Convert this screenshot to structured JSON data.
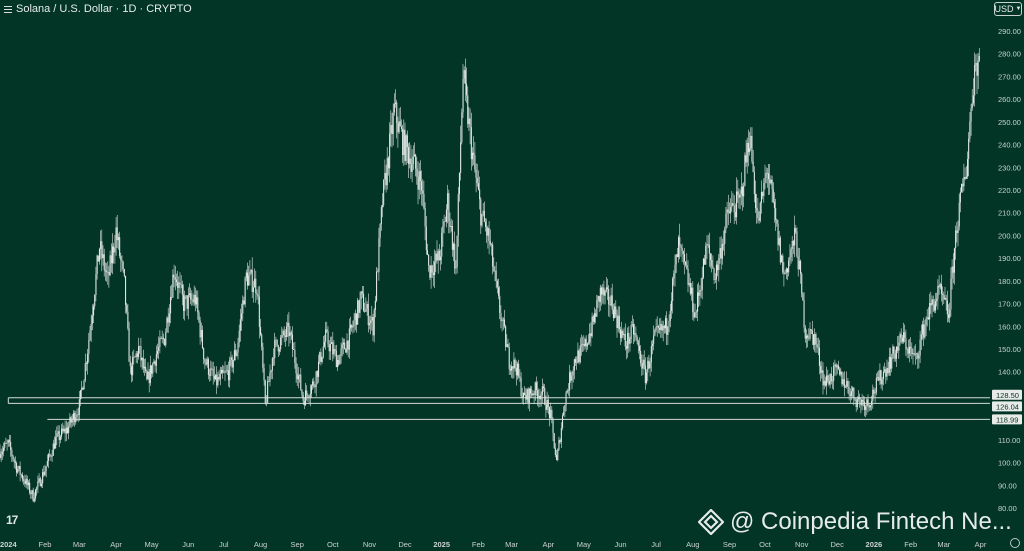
{
  "header": {
    "title": "Solana / U.S. Dollar · 1D · CRYPTO",
    "currency": "USD"
  },
  "logo_text": "17",
  "watermark": "@ Coinpedia Fintech Ne...",
  "colors": {
    "background": "#033527",
    "candle": "#dfe6e2",
    "level_line": "#d4dbd7",
    "axis_text": "#c9d2ce",
    "label_bg": "#e7ece9",
    "label_text": "#0b2d22"
  },
  "chart_data": {
    "type": "candlestick",
    "title": "Solana / U.S. Dollar · 1D · CRYPTO",
    "xlabel": "",
    "ylabel": "",
    "ylim": [
      70,
      300
    ],
    "y_ticks": [
      "80.00",
      "90.00",
      "100.00",
      "110.00",
      "120.00",
      "130.00",
      "140.00",
      "150.00",
      "160.00",
      "170.00",
      "180.00",
      "190.00",
      "200.00",
      "210.00",
      "220.00",
      "230.00",
      "240.00",
      "250.00",
      "260.00",
      "270.00",
      "280.00",
      "290.00"
    ],
    "x_ticks": [
      {
        "label": "2024",
        "date": "2024-01-01",
        "bold": true
      },
      {
        "label": "Feb",
        "date": "2024-02-01"
      },
      {
        "label": "Mar",
        "date": "2024-03-01"
      },
      {
        "label": "Apr",
        "date": "2024-04-01"
      },
      {
        "label": "May",
        "date": "2024-05-01"
      },
      {
        "label": "Jun",
        "date": "2024-06-01"
      },
      {
        "label": "Jul",
        "date": "2024-07-01"
      },
      {
        "label": "Aug",
        "date": "2024-08-01"
      },
      {
        "label": "Sep",
        "date": "2024-09-01"
      },
      {
        "label": "Oct",
        "date": "2024-10-01"
      },
      {
        "label": "Nov",
        "date": "2024-11-01"
      },
      {
        "label": "Dec",
        "date": "2024-12-01"
      },
      {
        "label": "2025",
        "date": "2025-01-01",
        "bold": true
      },
      {
        "label": "Feb",
        "date": "2025-02-01"
      },
      {
        "label": "Mar",
        "date": "2025-03-01"
      },
      {
        "label": "Apr",
        "date": "2025-04-01"
      },
      {
        "label": "May",
        "date": "2025-05-01"
      },
      {
        "label": "Jun",
        "date": "2025-06-01"
      },
      {
        "label": "Jul",
        "date": "2025-07-01"
      },
      {
        "label": "Aug",
        "date": "2025-08-01"
      },
      {
        "label": "Sep",
        "date": "2025-09-01"
      },
      {
        "label": "Oct",
        "date": "2025-10-01"
      },
      {
        "label": "Nov",
        "date": "2025-11-01"
      },
      {
        "label": "Dec",
        "date": "2025-12-01"
      },
      {
        "label": "2026",
        "date": "2026-01-01",
        "bold": true
      },
      {
        "label": "Feb",
        "date": "2026-02-01"
      },
      {
        "label": "Mar",
        "date": "2026-03-01"
      },
      {
        "label": "Apr",
        "date": "2026-04-01"
      }
    ],
    "price_path": [
      [
        "2023-12-25",
        105
      ],
      [
        "2024-01-01",
        108
      ],
      [
        "2024-01-08",
        98
      ],
      [
        "2024-01-15",
        92
      ],
      [
        "2024-01-22",
        85
      ],
      [
        "2024-02-01",
        97
      ],
      [
        "2024-02-10",
        110
      ],
      [
        "2024-02-20",
        115
      ],
      [
        "2024-03-01",
        125
      ],
      [
        "2024-03-08",
        150
      ],
      [
        "2024-03-18",
        195
      ],
      [
        "2024-03-25",
        180
      ],
      [
        "2024-04-01",
        202
      ],
      [
        "2024-04-08",
        178
      ],
      [
        "2024-04-13",
        140
      ],
      [
        "2024-04-20",
        150
      ],
      [
        "2024-04-27",
        135
      ],
      [
        "2024-05-05",
        148
      ],
      [
        "2024-05-12",
        155
      ],
      [
        "2024-05-20",
        185
      ],
      [
        "2024-05-28",
        170
      ],
      [
        "2024-06-07",
        172
      ],
      [
        "2024-06-15",
        145
      ],
      [
        "2024-06-24",
        135
      ],
      [
        "2024-07-05",
        140
      ],
      [
        "2024-07-12",
        150
      ],
      [
        "2024-07-20",
        182
      ],
      [
        "2024-07-29",
        178
      ],
      [
        "2024-08-05",
        125
      ],
      [
        "2024-08-12",
        150
      ],
      [
        "2024-08-25",
        158
      ],
      [
        "2024-09-06",
        128
      ],
      [
        "2024-09-15",
        135
      ],
      [
        "2024-09-25",
        155
      ],
      [
        "2024-10-05",
        145
      ],
      [
        "2024-10-15",
        155
      ],
      [
        "2024-10-25",
        172
      ],
      [
        "2024-11-04",
        160
      ],
      [
        "2024-11-12",
        215
      ],
      [
        "2024-11-22",
        255
      ],
      [
        "2024-11-30",
        240
      ],
      [
        "2024-12-08",
        232
      ],
      [
        "2024-12-15",
        222
      ],
      [
        "2024-12-21",
        185
      ],
      [
        "2024-12-30",
        190
      ],
      [
        "2025-01-06",
        215
      ],
      [
        "2025-01-13",
        185
      ],
      [
        "2025-01-19",
        270
      ],
      [
        "2025-01-27",
        235
      ],
      [
        "2025-02-03",
        210
      ],
      [
        "2025-02-10",
        198
      ],
      [
        "2025-02-18",
        170
      ],
      [
        "2025-02-27",
        145
      ],
      [
        "2025-03-05",
        142
      ],
      [
        "2025-03-11",
        128
      ],
      [
        "2025-03-20",
        132
      ],
      [
        "2025-03-28",
        130
      ],
      [
        "2025-04-03",
        120
      ],
      [
        "2025-04-08",
        100
      ],
      [
        "2025-04-15",
        128
      ],
      [
        "2025-04-23",
        145
      ],
      [
        "2025-05-01",
        150
      ],
      [
        "2025-05-08",
        160
      ],
      [
        "2025-05-15",
        175
      ],
      [
        "2025-05-25",
        170
      ],
      [
        "2025-06-05",
        152
      ],
      [
        "2025-06-12",
        158
      ],
      [
        "2025-06-22",
        138
      ],
      [
        "2025-06-30",
        155
      ],
      [
        "2025-07-10",
        160
      ],
      [
        "2025-07-20",
        195
      ],
      [
        "2025-07-28",
        180
      ],
      [
        "2025-08-03",
        165
      ],
      [
        "2025-08-13",
        195
      ],
      [
        "2025-08-20",
        182
      ],
      [
        "2025-08-31",
        210
      ],
      [
        "2025-09-10",
        215
      ],
      [
        "2025-09-18",
        245
      ],
      [
        "2025-09-25",
        205
      ],
      [
        "2025-10-03",
        230
      ],
      [
        "2025-10-10",
        205
      ],
      [
        "2025-10-17",
        182
      ],
      [
        "2025-10-27",
        200
      ],
      [
        "2025-11-04",
        158
      ],
      [
        "2025-11-12",
        155
      ],
      [
        "2025-11-20",
        135
      ],
      [
        "2025-11-30",
        140
      ],
      [
        "2025-12-08",
        135
      ],
      [
        "2025-12-17",
        128
      ],
      [
        "2025-12-27",
        126
      ],
      [
        "2026-01-05",
        136
      ],
      [
        "2026-01-15",
        145
      ],
      [
        "2026-01-25",
        155
      ],
      [
        "2026-02-05",
        145
      ],
      [
        "2026-02-15",
        165
      ],
      [
        "2026-02-25",
        175
      ],
      [
        "2026-03-05",
        165
      ],
      [
        "2026-03-12",
        205
      ],
      [
        "2026-03-20",
        230
      ],
      [
        "2026-03-27",
        275
      ],
      [
        "2026-03-31",
        278
      ]
    ],
    "levels": [
      {
        "value": 128.5,
        "label": "128.50",
        "start": "2024-01-01"
      },
      {
        "value": 126.04,
        "label": "126.04",
        "start": "2024-01-01"
      },
      {
        "value": 118.99,
        "label": "118.99",
        "start": "2024-02-03"
      }
    ],
    "grid": false,
    "legend": "none"
  }
}
